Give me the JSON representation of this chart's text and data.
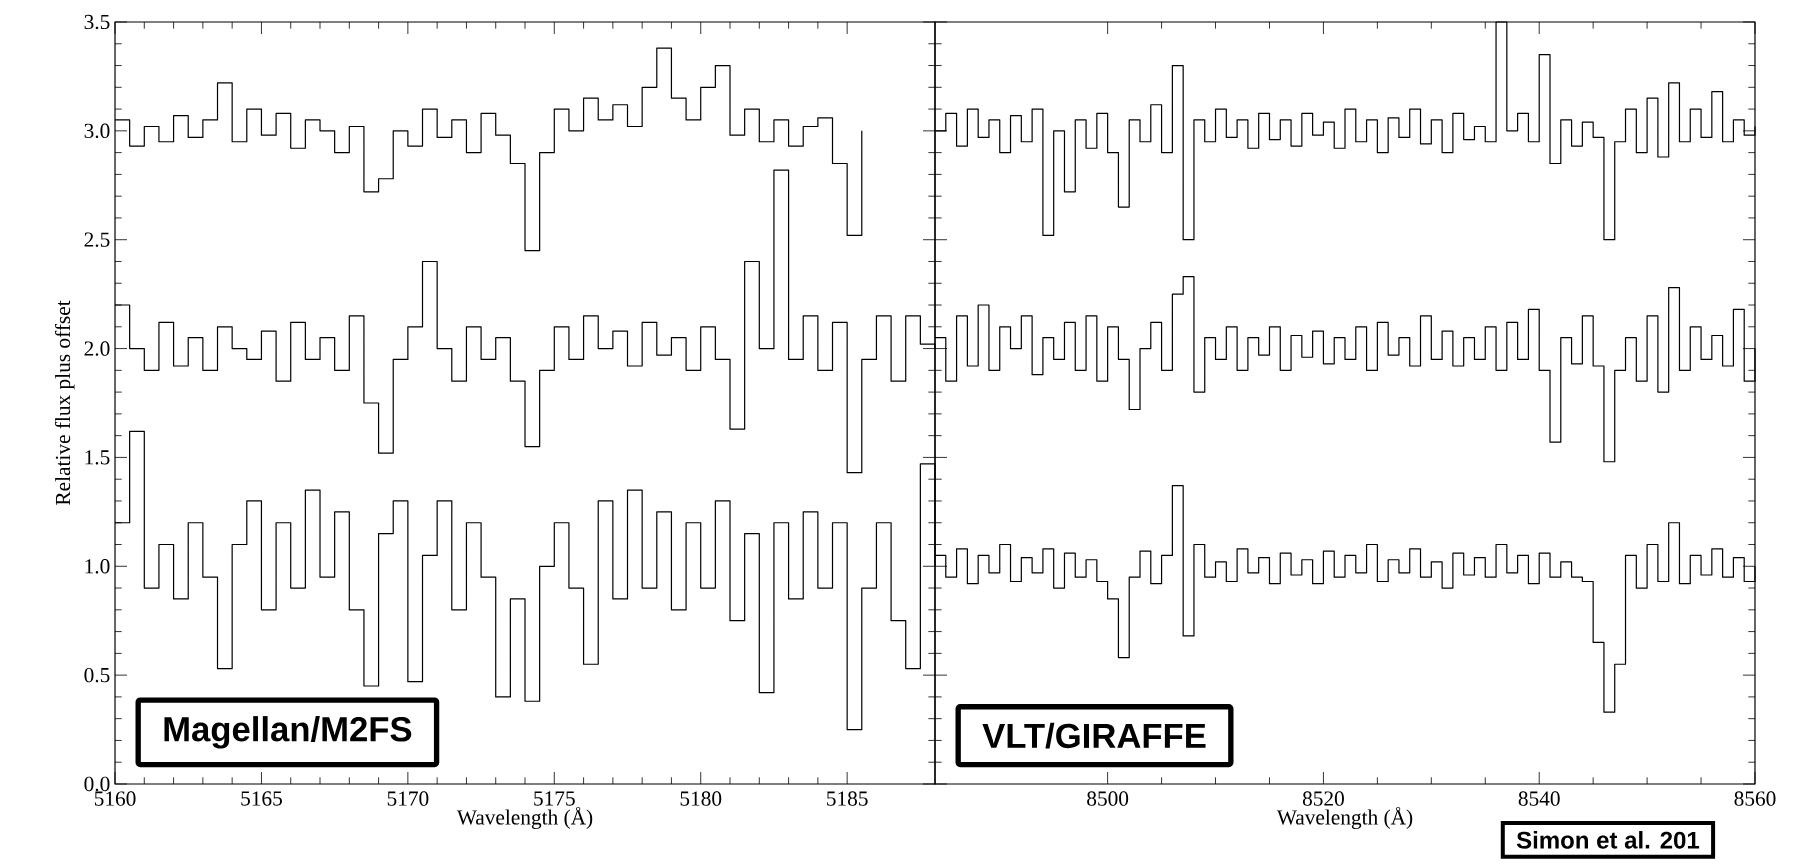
{
  "chart_data": [
    {
      "type": "step",
      "xlabel": "Wavelength (Å)",
      "ylabel": "Relative flux plus offset",
      "xlim": [
        5160,
        5188
      ],
      "ylim": [
        0,
        3.5
      ],
      "xticks": [
        5160,
        5165,
        5170,
        5175,
        5180,
        5185
      ],
      "yticks": [
        {
          "value": 0,
          "label": "0.0"
        },
        {
          "value": 0.5,
          "label": "0.5"
        },
        {
          "value": 1,
          "label": "1.0"
        },
        {
          "value": 1.5,
          "label": "1.5"
        },
        {
          "value": 2,
          "label": "2.0"
        },
        {
          "value": 2.5,
          "label": "2.5"
        },
        {
          "value": 3,
          "label": "3.0"
        },
        {
          "value": 3.5,
          "label": "3.5"
        }
      ],
      "annotations": [
        "Magellan/M2FS"
      ],
      "x": [
        5160,
        5160.5,
        5161,
        5161.5,
        5162,
        5162.5,
        5163,
        5163.5,
        5164,
        5164.5,
        5165,
        5165.5,
        5166,
        5166.5,
        5167,
        5167.5,
        5168,
        5168.5,
        5169,
        5169.5,
        5170,
        5170.5,
        5171,
        5171.5,
        5172,
        5172.5,
        5173,
        5173.5,
        5174,
        5174.5,
        5175,
        5175.5,
        5176,
        5176.5,
        5177,
        5177.5,
        5178,
        5178.5,
        5179,
        5179.5,
        5180,
        5180.5,
        5181,
        5181.5,
        5182,
        5182.5,
        5183,
        5183.5,
        5184,
        5184.5,
        5185,
        5185.5,
        5186,
        5186.5,
        5187,
        5187.5,
        5188
      ],
      "series": [
        {
          "color": "#000000",
          "x": [
            5160,
            5160.5,
            5161,
            5161.5,
            5162,
            5162.5,
            5163,
            5163.5,
            5164,
            5164.5,
            5165,
            5165.5,
            5166,
            5166.5,
            5167,
            5167.5,
            5168,
            5168.5,
            5169,
            5169.5,
            5170,
            5170.5,
            5171,
            5171.5,
            5172,
            5172.5,
            5173,
            5173.5,
            5174,
            5174.5,
            5175,
            5175.5,
            5176,
            5176.5,
            5177,
            5177.5,
            5178,
            5178.5,
            5179,
            5179.5,
            5180,
            5180.5,
            5181,
            5181.5,
            5182,
            5182.5,
            5183,
            5183.5,
            5184,
            5184.5,
            5185,
            5185.5
          ],
          "values": [
            3.05,
            2.93,
            3.02,
            2.95,
            3.07,
            2.97,
            3.05,
            3.22,
            2.95,
            3.1,
            2.98,
            3.08,
            2.92,
            3.05,
            3.0,
            2.9,
            3.02,
            2.72,
            2.78,
            3.0,
            2.93,
            3.1,
            2.97,
            3.05,
            2.9,
            3.08,
            2.98,
            2.85,
            2.45,
            2.9,
            3.1,
            3.0,
            3.15,
            3.05,
            3.12,
            3.02,
            3.2,
            3.38,
            3.15,
            3.05,
            3.2,
            3.3,
            2.98,
            3.1,
            2.95,
            3.05,
            2.93,
            3.02,
            3.06,
            2.85,
            2.52,
            3.0
          ]
        },
        {
          "color": "#000000",
          "values": [
            2.2,
            2.0,
            1.9,
            2.12,
            1.92,
            2.05,
            1.9,
            2.1,
            2.0,
            1.95,
            2.08,
            1.85,
            2.12,
            1.95,
            2.05,
            1.9,
            2.15,
            1.75,
            1.52,
            1.95,
            2.1,
            2.4,
            2.0,
            1.85,
            2.1,
            1.95,
            2.05,
            1.85,
            1.55,
            1.9,
            2.1,
            1.95,
            2.15,
            2.0,
            2.08,
            1.92,
            2.12,
            1.97,
            2.05,
            1.9,
            2.1,
            1.95,
            1.63,
            2.4,
            2.0,
            2.82,
            1.95,
            2.15,
            1.9,
            2.12,
            1.43,
            1.95,
            2.15,
            1.85,
            2.15,
            2.02,
            2.0
          ]
        },
        {
          "color": "#000000",
          "values": [
            1.2,
            1.62,
            0.9,
            1.1,
            0.85,
            1.2,
            0.95,
            0.53,
            1.1,
            1.3,
            0.8,
            1.2,
            0.9,
            1.35,
            0.95,
            1.25,
            0.8,
            0.45,
            1.15,
            1.3,
            0.47,
            1.05,
            1.3,
            0.8,
            1.2,
            0.95,
            0.4,
            0.85,
            0.38,
            1.0,
            1.2,
            0.9,
            0.55,
            1.3,
            0.85,
            1.35,
            0.9,
            1.25,
            0.8,
            1.2,
            0.9,
            1.3,
            0.75,
            1.15,
            0.42,
            1.2,
            0.85,
            1.25,
            0.9,
            1.2,
            0.25,
            0.9,
            1.2,
            0.75,
            0.53,
            1.47,
            1.0
          ]
        }
      ]
    },
    {
      "type": "step",
      "xlabel": "Wavelength (Å)",
      "xlim": [
        8484,
        8560
      ],
      "ylim": [
        0,
        3.5
      ],
      "xticks": [
        8500,
        8520,
        8540,
        8560
      ],
      "tick_labels": "x",
      "yticks": [
        {
          "value": 0,
          "label": null
        },
        {
          "value": 0.5,
          "label": null
        },
        {
          "value": 1,
          "label": null
        },
        {
          "value": 1.5,
          "label": null
        },
        {
          "value": 2,
          "label": null
        },
        {
          "value": 2.5,
          "label": null
        },
        {
          "value": 3,
          "label": null
        },
        {
          "value": 3.5,
          "label": null
        }
      ],
      "annotations": [
        "VLT/GIRAFFE",
        "Simon et al. 201"
      ],
      "x": [
        8484,
        8485,
        8486,
        8487,
        8488,
        8489,
        8490,
        8491,
        8492,
        8493,
        8494,
        8495,
        8496,
        8497,
        8498,
        8499,
        8500,
        8501,
        8502,
        8503,
        8504,
        8505,
        8506,
        8507,
        8508,
        8509,
        8510,
        8511,
        8512,
        8513,
        8514,
        8515,
        8516,
        8517,
        8518,
        8519,
        8520,
        8521,
        8522,
        8523,
        8524,
        8525,
        8526,
        8527,
        8528,
        8529,
        8530,
        8531,
        8532,
        8533,
        8534,
        8535,
        8536,
        8537,
        8538,
        8539,
        8540,
        8541,
        8542,
        8543,
        8544,
        8545,
        8546,
        8547,
        8548,
        8549,
        8550,
        8551,
        8552,
        8553,
        8554,
        8555,
        8556,
        8557,
        8558,
        8559,
        8560
      ],
      "series": [
        {
          "color": "#000000",
          "values": [
            3.0,
            3.08,
            2.93,
            3.1,
            2.97,
            3.05,
            2.9,
            3.07,
            2.95,
            3.1,
            2.52,
            3.0,
            2.72,
            3.05,
            2.92,
            3.08,
            2.9,
            2.65,
            3.05,
            2.95,
            3.12,
            2.9,
            3.3,
            2.5,
            3.05,
            2.95,
            3.1,
            2.97,
            3.05,
            2.92,
            3.08,
            2.96,
            3.05,
            2.93,
            3.08,
            2.98,
            3.04,
            2.92,
            3.1,
            2.95,
            3.05,
            2.9,
            3.06,
            2.97,
            3.1,
            2.94,
            3.05,
            2.9,
            3.08,
            2.96,
            3.02,
            2.95,
            3.5,
            3.0,
            3.08,
            2.95,
            3.35,
            2.85,
            3.05,
            2.93,
            3.04,
            2.97,
            2.5,
            2.95,
            3.1,
            2.9,
            3.15,
            2.88,
            3.22,
            2.95,
            3.1,
            2.97,
            3.18,
            2.95,
            3.05,
            2.98,
            3.02
          ]
        },
        {
          "color": "#000000",
          "values": [
            2.05,
            1.85,
            2.15,
            1.92,
            2.2,
            1.9,
            2.1,
            2.0,
            2.15,
            1.88,
            2.05,
            1.95,
            2.12,
            1.9,
            2.15,
            1.85,
            2.1,
            1.95,
            1.72,
            2.0,
            2.12,
            1.9,
            2.25,
            2.33,
            1.8,
            2.05,
            1.95,
            2.1,
            1.9,
            2.05,
            1.97,
            2.1,
            1.9,
            2.06,
            1.96,
            2.08,
            1.93,
            2.05,
            1.95,
            2.1,
            1.9,
            2.12,
            1.97,
            2.05,
            1.92,
            2.15,
            1.95,
            2.08,
            1.92,
            2.05,
            1.95,
            2.1,
            1.9,
            2.12,
            1.95,
            2.18,
            1.9,
            1.57,
            2.05,
            1.93,
            2.15,
            1.92,
            1.48,
            1.9,
            2.05,
            1.85,
            2.15,
            1.8,
            2.28,
            1.9,
            2.1,
            1.95,
            2.06,
            1.92,
            2.18,
            1.85,
            2.0
          ]
        },
        {
          "color": "#000000",
          "values": [
            1.05,
            0.95,
            1.08,
            0.92,
            1.05,
            0.97,
            1.1,
            0.93,
            1.04,
            0.97,
            1.08,
            0.9,
            1.06,
            0.95,
            1.03,
            0.93,
            0.85,
            0.58,
            0.95,
            1.07,
            0.92,
            1.05,
            1.37,
            0.68,
            1.1,
            0.95,
            1.02,
            0.93,
            1.08,
            0.97,
            1.04,
            0.92,
            1.06,
            0.96,
            1.03,
            0.92,
            1.07,
            0.95,
            1.05,
            0.97,
            1.1,
            0.93,
            1.03,
            0.97,
            1.08,
            0.95,
            1.02,
            0.9,
            1.06,
            0.96,
            1.04,
            0.95,
            1.1,
            0.97,
            1.05,
            0.92,
            1.06,
            0.95,
            1.02,
            0.95,
            0.93,
            0.65,
            0.33,
            0.55,
            1.05,
            0.9,
            1.1,
            0.93,
            1.2,
            0.92,
            1.05,
            0.96,
            1.08,
            0.95,
            1.04,
            0.93,
            1.0
          ]
        }
      ]
    }
  ]
}
